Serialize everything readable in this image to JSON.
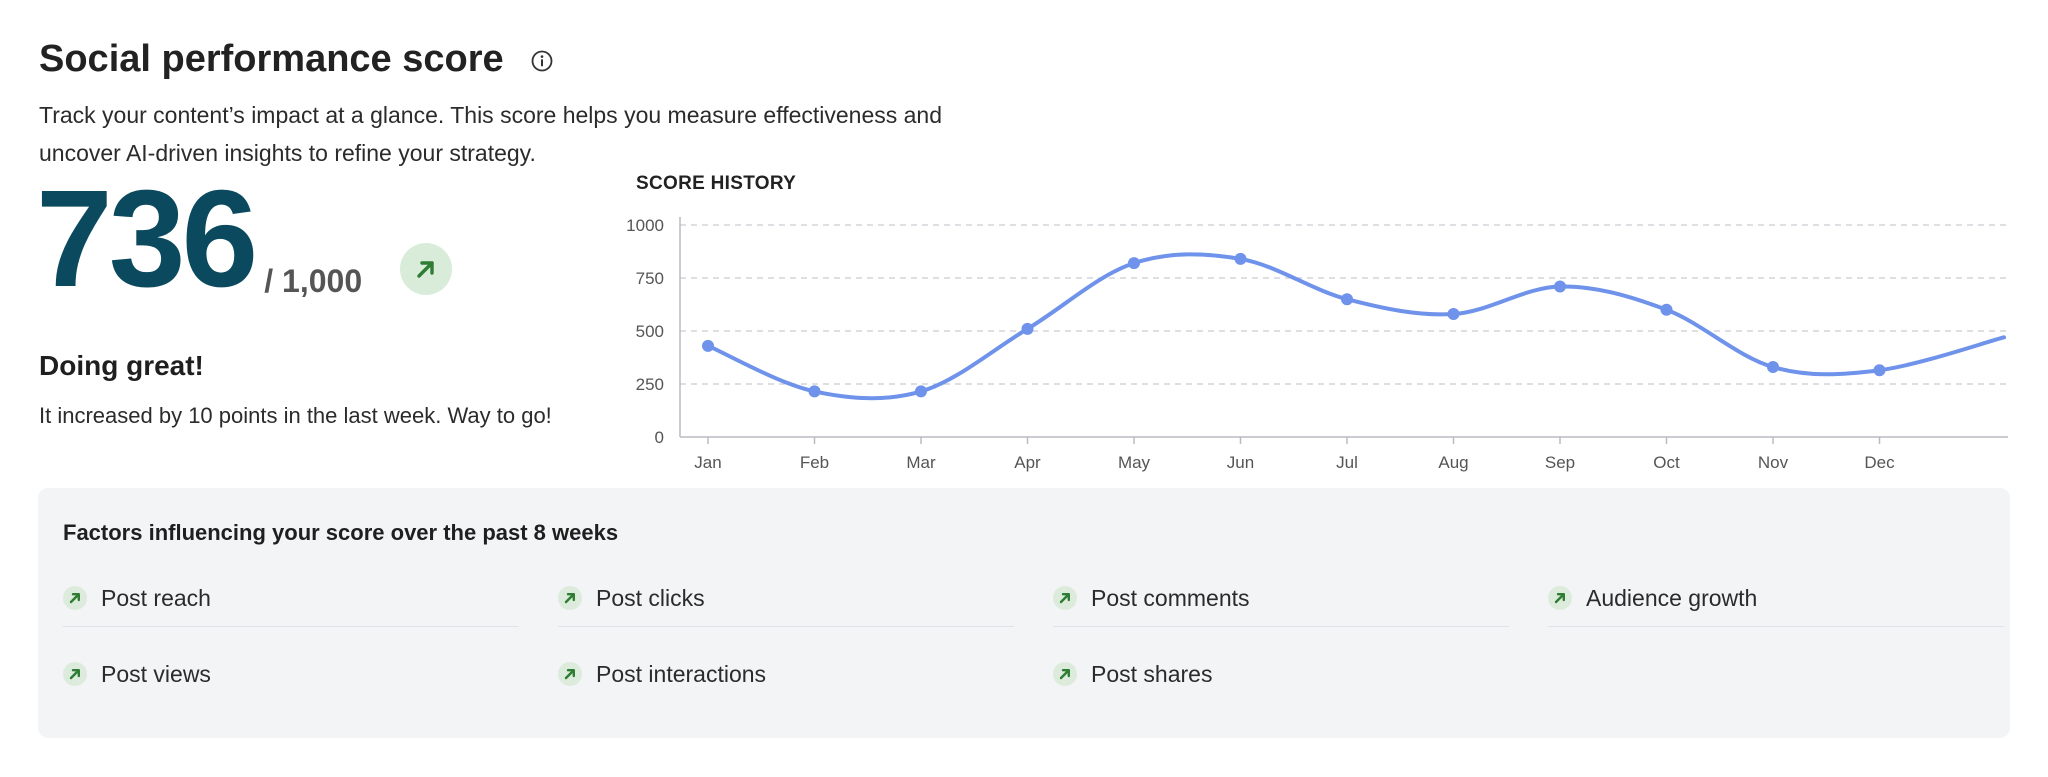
{
  "header": {
    "title": "Social performance score",
    "description_line1": "Track your content’s impact at a glance. This score helps you measure effectiveness and",
    "description_line2": "uncover AI-driven insights to refine your strategy."
  },
  "score": {
    "value": "736",
    "max": "/ 1,000",
    "trend": "up",
    "status_heading": "Doing great!",
    "status_text": "It increased by 10 points in the last week. Way to go!"
  },
  "chart_data": {
    "type": "line",
    "title": "SCORE HISTORY",
    "categories": [
      "Jan",
      "Feb",
      "Mar",
      "Apr",
      "May",
      "Jun",
      "Jul",
      "Aug",
      "Sep",
      "Oct",
      "Nov",
      "Dec"
    ],
    "series": [
      {
        "values": [
          430,
          215,
          215,
          510,
          820,
          840,
          650,
          580,
          710,
          600,
          330,
          315
        ]
      }
    ],
    "y_ticks": [
      "1000",
      "750",
      "500",
      "250",
      "0"
    ],
    "ylim": [
      0,
      1000
    ],
    "grid": true,
    "color": "#6f92ea"
  },
  "factors": {
    "title": "Factors influencing your score over the past 8 weeks",
    "items": [
      {
        "label": "Post reach",
        "trend": "up"
      },
      {
        "label": "Post clicks",
        "trend": "up"
      },
      {
        "label": "Post comments",
        "trend": "up"
      },
      {
        "label": "Audience growth",
        "trend": "up"
      },
      {
        "label": "Post views",
        "trend": "up"
      },
      {
        "label": "Post interactions",
        "trend": "up"
      },
      {
        "label": "Post shares",
        "trend": "up"
      }
    ]
  },
  "colors": {
    "score": "#0b4a5e",
    "trend_green": "#2e7d32",
    "trend_bg": "#d9ecd9",
    "line": "#6f92ea",
    "panel_bg": "#f3f4f6"
  }
}
